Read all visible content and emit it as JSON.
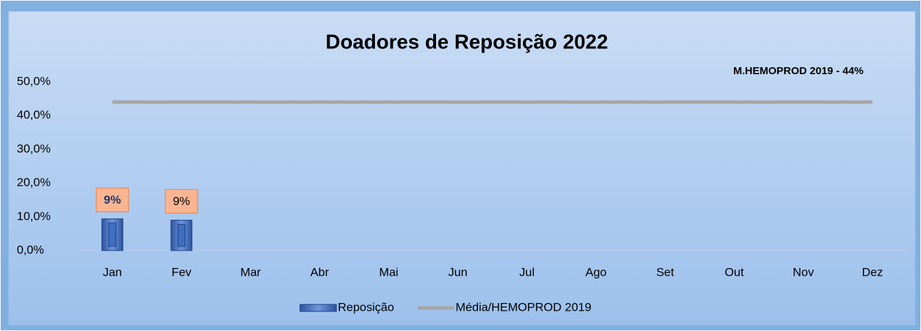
{
  "chart_data": {
    "type": "bar",
    "title": "Doadores de Reposição 2022",
    "annotation": "M.HEMOPROD 2019 - 44%",
    "categories": [
      "Jan",
      "Fev",
      "Mar",
      "Abr",
      "Mai",
      "Jun",
      "Jul",
      "Ago",
      "Set",
      "Out",
      "Nov",
      "Dez"
    ],
    "series": [
      {
        "name": "Reposição",
        "type": "bar",
        "color": "#3f6fc0",
        "values": [
          9.4,
          9.0,
          null,
          null,
          null,
          null,
          null,
          null,
          null,
          null,
          null,
          null
        ],
        "value_labels": [
          "9%",
          "9%",
          null,
          null,
          null,
          null,
          null,
          null,
          null,
          null,
          null,
          null
        ]
      },
      {
        "name": "Média/HEMOPROD 2019",
        "type": "line",
        "color": "#a6a6a6",
        "values": [
          44,
          44,
          44,
          44,
          44,
          44,
          44,
          44,
          44,
          44,
          44,
          44
        ]
      }
    ],
    "ylim": [
      0,
      50
    ],
    "yticks": [
      {
        "value": 0,
        "label": "0,0%"
      },
      {
        "value": 10,
        "label": "10,0%"
      },
      {
        "value": 20,
        "label": "20,0%"
      },
      {
        "value": 30,
        "label": "30,0%"
      },
      {
        "value": 40,
        "label": "40,0%"
      },
      {
        "value": 50,
        "label": "50,0%"
      }
    ],
    "legend": "bottom"
  }
}
